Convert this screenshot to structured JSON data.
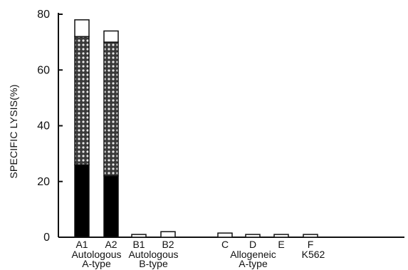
{
  "chart_data": {
    "type": "bar",
    "stacked": true,
    "ylabel": "SPECIFIC LYSIS(%)",
    "ylim": [
      0,
      80
    ],
    "yticks": [
      0,
      20,
      40,
      60,
      80
    ],
    "grid": false,
    "categories": [
      "A1",
      "A2",
      "B1",
      "B2",
      "C",
      "D",
      "E",
      "F"
    ],
    "category_groups": [
      {
        "members": [
          "A1",
          "A2"
        ],
        "label_line1": "Autologous",
        "label_line2": "A-type"
      },
      {
        "members": [
          "B1",
          "B2"
        ],
        "label_line1": "Autologous",
        "label_line2": "B-type"
      },
      {
        "members": [
          "C",
          "D",
          "E"
        ],
        "label_line1": "Allogeneic",
        "label_line2": "A-type"
      },
      {
        "members": [
          "F"
        ],
        "label_line1": "K562",
        "label_line2": ""
      }
    ],
    "series": [
      {
        "fill": "solid",
        "color": "#000000",
        "values": [
          26,
          22,
          0,
          0,
          0,
          0,
          0,
          0
        ]
      },
      {
        "fill": "dotted",
        "color": "#555555",
        "values": [
          46,
          48,
          0,
          0,
          0,
          0,
          0,
          0
        ]
      },
      {
        "fill": "open",
        "color": "#ffffff",
        "values": [
          6,
          4,
          1,
          2,
          1.5,
          1,
          1,
          1
        ]
      }
    ]
  }
}
